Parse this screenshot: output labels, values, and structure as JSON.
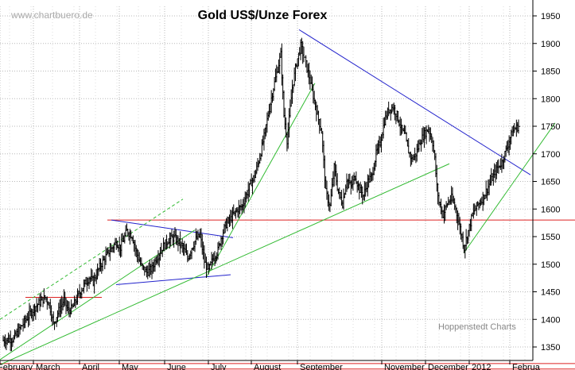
{
  "chart_data": {
    "type": "ohlc",
    "title": "Gold US$/Unze Forex",
    "watermark": "www.chartbuero.de",
    "credit": "Hoppenstedt Charts",
    "y_axis": {
      "position": "right",
      "min": 1300,
      "max": 1960,
      "ticks": [
        1350,
        1400,
        1450,
        1500,
        1550,
        1600,
        1650,
        1700,
        1750,
        1800,
        1850,
        1900,
        1950
      ]
    },
    "x_axis": {
      "labels": [
        "February",
        "March",
        "April",
        "May",
        "June",
        "July",
        "August",
        "September",
        "November",
        "December",
        "2012",
        "Februa"
      ]
    },
    "grid": true,
    "colors": {
      "bars": "#000000",
      "resistance": "#dd2222",
      "trend_up": "#33bb33",
      "trend_down": "#2222cc",
      "grid": "#b8b8b8"
    },
    "series": [
      {
        "start": 1362,
        "waypoints": [
          [
            0,
            1362
          ],
          [
            10,
            1365
          ],
          [
            20,
            1395
          ],
          [
            30,
            1422
          ],
          [
            40,
            1440
          ],
          [
            44,
            1428
          ],
          [
            48,
            1392
          ],
          [
            53,
            1416
          ],
          [
            58,
            1436
          ],
          [
            62,
            1415
          ],
          [
            66,
            1420
          ],
          [
            72,
            1445
          ],
          [
            78,
            1465
          ],
          [
            82,
            1476
          ],
          [
            86,
            1468
          ],
          [
            92,
            1495
          ],
          [
            100,
            1520
          ],
          [
            108,
            1540
          ],
          [
            112,
            1530
          ],
          [
            118,
            1560
          ],
          [
            123,
            1552
          ],
          [
            127,
            1522
          ],
          [
            132,
            1496
          ],
          [
            137,
            1485
          ],
          [
            142,
            1492
          ],
          [
            146,
            1510
          ],
          [
            152,
            1530
          ],
          [
            158,
            1545
          ],
          [
            163,
            1548
          ],
          [
            168,
            1540
          ],
          [
            172,
            1528
          ],
          [
            176,
            1510
          ],
          [
            180,
            1530
          ],
          [
            184,
            1545
          ],
          [
            188,
            1552
          ],
          [
            192,
            1505
          ],
          [
            196,
            1488
          ],
          [
            200,
            1510
          ],
          [
            205,
            1525
          ],
          [
            208,
            1548
          ],
          [
            212,
            1570
          ],
          [
            218,
            1585
          ],
          [
            224,
            1600
          ],
          [
            228,
            1605
          ],
          [
            232,
            1625
          ],
          [
            236,
            1645
          ],
          [
            240,
            1660
          ],
          [
            245,
            1695
          ],
          [
            250,
            1740
          ],
          [
            254,
            1782
          ],
          [
            258,
            1820
          ],
          [
            262,
            1855
          ],
          [
            265,
            1880
          ],
          [
            268,
            1770
          ],
          [
            271,
            1725
          ],
          [
            276,
            1820
          ],
          [
            280,
            1865
          ],
          [
            284,
            1895
          ],
          [
            288,
            1870
          ],
          [
            292,
            1840
          ],
          [
            296,
            1805
          ],
          [
            300,
            1770
          ],
          [
            304,
            1740
          ],
          [
            308,
            1630
          ],
          [
            312,
            1605
          ],
          [
            316,
            1675
          ],
          [
            320,
            1630
          ],
          [
            324,
            1610
          ],
          [
            328,
            1655
          ],
          [
            332,
            1640
          ],
          [
            336,
            1660
          ],
          [
            340,
            1635
          ],
          [
            344,
            1625
          ],
          [
            348,
            1650
          ],
          [
            352,
            1660
          ],
          [
            356,
            1700
          ],
          [
            360,
            1720
          ],
          [
            364,
            1760
          ],
          [
            368,
            1780
          ],
          [
            372,
            1785
          ],
          [
            376,
            1770
          ],
          [
            380,
            1745
          ],
          [
            384,
            1730
          ],
          [
            386,
            1710
          ],
          [
            390,
            1690
          ],
          [
            394,
            1700
          ],
          [
            398,
            1722
          ],
          [
            402,
            1736
          ],
          [
            406,
            1746
          ],
          [
            410,
            1720
          ],
          [
            412,
            1690
          ],
          [
            414,
            1640
          ],
          [
            416,
            1612
          ],
          [
            420,
            1590
          ],
          [
            424,
            1610
          ],
          [
            428,
            1620
          ],
          [
            432,
            1600
          ],
          [
            436,
            1565
          ],
          [
            440,
            1530
          ],
          [
            444,
            1560
          ],
          [
            448,
            1590
          ],
          [
            452,
            1605
          ],
          [
            456,
            1615
          ],
          [
            460,
            1628
          ],
          [
            464,
            1645
          ],
          [
            468,
            1660
          ],
          [
            472,
            1675
          ],
          [
            476,
            1685
          ],
          [
            480,
            1706
          ],
          [
            484,
            1730
          ],
          [
            488,
            1745
          ],
          [
            492,
            1750
          ]
        ]
      }
    ],
    "lines": [
      {
        "name": "resistance-1580",
        "color": "#dd2222",
        "x1": 135,
        "y1": 1580,
        "x2": 723,
        "y2": 1580
      },
      {
        "name": "resistance-1440",
        "color": "#dd2222",
        "x1": 32,
        "y1": 1440,
        "x2": 128,
        "y2": 1440
      },
      {
        "name": "support-1320",
        "color": "#dd2222",
        "x1": 0,
        "y1": 1320,
        "x2": 723,
        "y2": 1320
      },
      {
        "name": "support-1310",
        "color": "#dd2222",
        "x1": 0,
        "y1": 1310,
        "x2": 723,
        "y2": 1310
      },
      {
        "name": "triangle-upper",
        "color": "#2222cc",
        "x1": 140,
        "y1": 1580,
        "x2": 293,
        "y2": 1548
      },
      {
        "name": "triangle-lower",
        "color": "#2222cc",
        "x1": 146,
        "y1": 1463,
        "x2": 290,
        "y2": 1481
      },
      {
        "name": "down-trend",
        "color": "#2222cc",
        "x1": 376,
        "y1": 1925,
        "x2": 667,
        "y2": 1662
      },
      {
        "name": "long-trend",
        "color": "#33bb33",
        "x1": 0,
        "y1": 1318,
        "x2": 565,
        "y2": 1682
      },
      {
        "name": "trend-spring",
        "color": "#33bb33",
        "x1": 0,
        "y1": 1327,
        "x2": 245,
        "y2": 1562
      },
      {
        "name": "trend-summer",
        "color": "#33bb33",
        "x1": 260,
        "y1": 1478,
        "x2": 396,
        "y2": 1828
      },
      {
        "name": "trend-winter",
        "color": "#33bb33",
        "x1": 583,
        "y1": 1520,
        "x2": 698,
        "y2": 1756
      },
      {
        "name": "channel-dashed",
        "color": "#33bb33",
        "dashed": true,
        "x1": 0,
        "y1": 1400,
        "x2": 230,
        "y2": 1618
      }
    ]
  }
}
